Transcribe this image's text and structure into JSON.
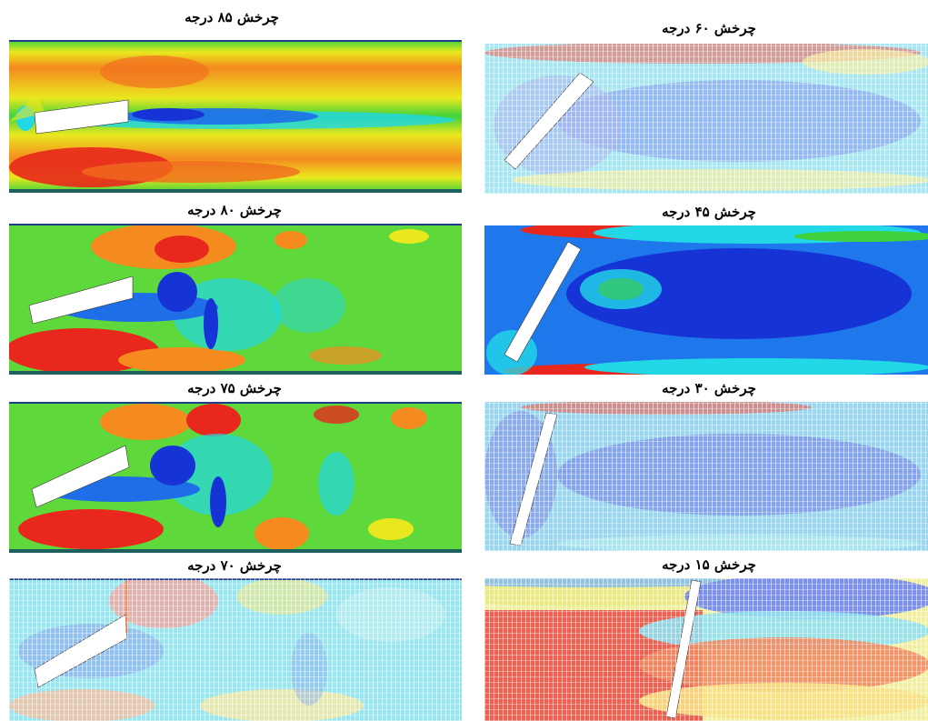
{
  "panels": [
    {
      "id": "p85",
      "title": "چرخش ۸۵ درجه",
      "angle_deg": 85
    },
    {
      "id": "p60",
      "title": "چرخش ۶۰ درجه",
      "angle_deg": 60
    },
    {
      "id": "p80",
      "title": "چرخش ۸۰ درجه",
      "angle_deg": 80
    },
    {
      "id": "p45",
      "title": "چرخش ۴۵ درجه",
      "angle_deg": 45
    },
    {
      "id": "p75",
      "title": "چرخش ۷۵ درجه",
      "angle_deg": 75
    },
    {
      "id": "p30",
      "title": "چرخش ۳۰ درجه",
      "angle_deg": 30
    },
    {
      "id": "p70",
      "title": "چرخش ۷۰ درجه",
      "angle_deg": 70
    },
    {
      "id": "p15",
      "title": "چرخش ۱۵ درجه",
      "angle_deg": 15
    }
  ],
  "colors": {
    "red": "#e8281c",
    "orange": "#f58a1f",
    "yellow": "#e9e81e",
    "green": "#3fd23c",
    "cyan": "#22d8e6",
    "blue": "#1e6ee8",
    "deep_blue": "#1634d6",
    "plate": "#ffffff"
  }
}
